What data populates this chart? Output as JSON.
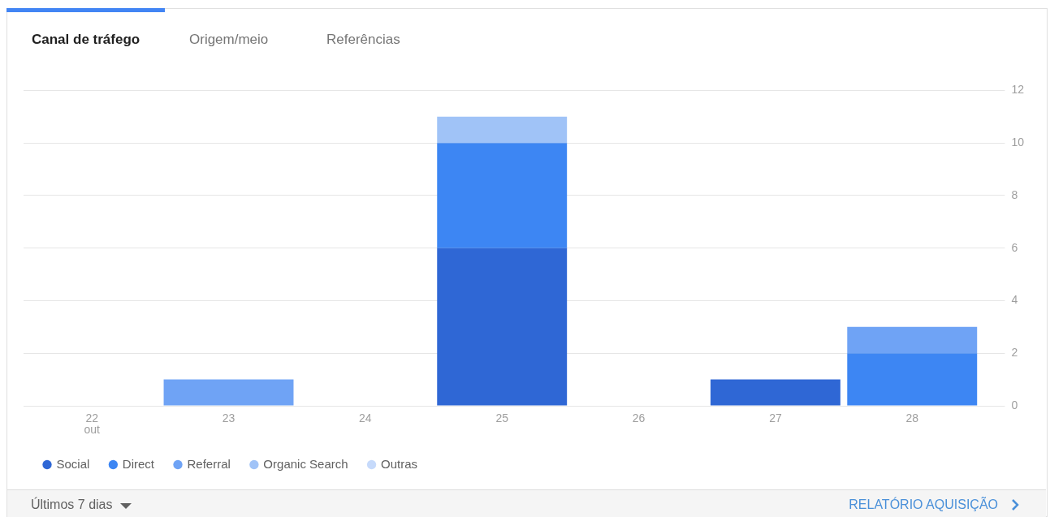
{
  "chart_data": {
    "type": "bar",
    "stacked": true,
    "title": "Canal de tráfego",
    "annotations": [
      "Origem/meio",
      "Referências",
      "Últimos 7 dias",
      "RELATÓRIO AQUISIÇÃO"
    ],
    "categories": [
      "22\nout",
      "23",
      "24",
      "25",
      "26",
      "27",
      "28"
    ],
    "series": [
      {
        "name": "Social",
        "color": "#2f67d5",
        "values": [
          0,
          0,
          0,
          6,
          0,
          1,
          0
        ]
      },
      {
        "name": "Direct",
        "color": "#3d86f3",
        "values": [
          0,
          0,
          0,
          4,
          0,
          0,
          2
        ]
      },
      {
        "name": "Referral",
        "color": "#6fa3f5",
        "values": [
          0,
          1,
          0,
          0,
          0,
          0,
          1
        ]
      },
      {
        "name": "Organic Search",
        "color": "#a0c3f7",
        "values": [
          0,
          0,
          0,
          1,
          0,
          0,
          0
        ]
      },
      {
        "name": "Outras",
        "color": "#c6dafb",
        "values": [
          0,
          0,
          0,
          0,
          0,
          0,
          0
        ]
      }
    ],
    "ylim": [
      0,
      12
    ],
    "yticks": [
      0,
      2,
      4,
      6,
      8,
      10,
      12
    ],
    "grid": "y",
    "legend": "bottom"
  }
}
